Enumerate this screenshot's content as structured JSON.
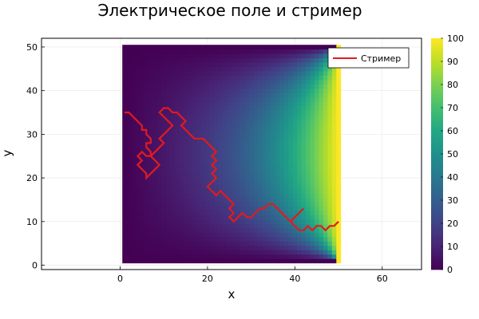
{
  "chart_data": {
    "type": "heatmap",
    "title": "Электрическое поле и стример",
    "xlabel": "x",
    "ylabel": "y",
    "xlim": [
      -18,
      69
    ],
    "ylim": [
      -1,
      52
    ],
    "xticks": [
      0,
      20,
      40,
      60
    ],
    "yticks": [
      0,
      10,
      20,
      30,
      40,
      50
    ],
    "grid": true,
    "heatmap": {
      "x_range": [
        0.5,
        50.5
      ],
      "y_range": [
        0.5,
        50.5
      ],
      "nx": 50,
      "ny": 50,
      "clim": [
        0,
        100
      ],
      "colormap": "viridis",
      "boundary_values": {
        "left": 0,
        "right": 100,
        "top": 0,
        "bottom": 0
      }
    },
    "colorbar": {
      "ticks": [
        0,
        10,
        20,
        30,
        40,
        50,
        60,
        70,
        80,
        90,
        100
      ],
      "range": [
        0,
        100
      ]
    },
    "series": [
      {
        "name": "Стример",
        "type": "line",
        "color": "#e31a1c",
        "points": [
          [
            1,
            35
          ],
          [
            2,
            35
          ],
          [
            3,
            34
          ],
          [
            4,
            33
          ],
          [
            5,
            32
          ],
          [
            5,
            31
          ],
          [
            6,
            31
          ],
          [
            6,
            30
          ],
          [
            7,
            29
          ],
          [
            7,
            28
          ],
          [
            6,
            28
          ],
          [
            6,
            27
          ],
          [
            7,
            26
          ],
          [
            7,
            25
          ],
          [
            6,
            25
          ],
          [
            5,
            26
          ],
          [
            4,
            25
          ],
          [
            5,
            24
          ],
          [
            4,
            23
          ],
          [
            5,
            22
          ],
          [
            6,
            21
          ],
          [
            6,
            20
          ],
          [
            7,
            21
          ],
          [
            8,
            22
          ],
          [
            9,
            23
          ],
          [
            8,
            24
          ],
          [
            7,
            25
          ],
          [
            8,
            26
          ],
          [
            9,
            27
          ],
          [
            10,
            28
          ],
          [
            9,
            29
          ],
          [
            10,
            30
          ],
          [
            11,
            31
          ],
          [
            12,
            32
          ],
          [
            11,
            33
          ],
          [
            10,
            34
          ],
          [
            9,
            35
          ],
          [
            10,
            36
          ],
          [
            11,
            36
          ],
          [
            12,
            35
          ],
          [
            13,
            35
          ],
          [
            14,
            34
          ],
          [
            15,
            33
          ],
          [
            14,
            32
          ],
          [
            15,
            31
          ],
          [
            16,
            30
          ],
          [
            17,
            29
          ],
          [
            18,
            29
          ],
          [
            19,
            29
          ],
          [
            20,
            28
          ],
          [
            21,
            27
          ],
          [
            22,
            26
          ],
          [
            21,
            25
          ],
          [
            22,
            24
          ],
          [
            21,
            23
          ],
          [
            22,
            22
          ],
          [
            21,
            21
          ],
          [
            22,
            20
          ],
          [
            21,
            19
          ],
          [
            20,
            18
          ],
          [
            21,
            17
          ],
          [
            22,
            16
          ],
          [
            23,
            17
          ],
          [
            24,
            16
          ],
          [
            25,
            15
          ],
          [
            26,
            14
          ],
          [
            25,
            13
          ],
          [
            26,
            12
          ],
          [
            25,
            11
          ],
          [
            26,
            10
          ],
          [
            27,
            11
          ],
          [
            28,
            12
          ],
          [
            29,
            11
          ],
          [
            30,
            11
          ],
          [
            31,
            12
          ],
          [
            32,
            13
          ],
          [
            33,
            13
          ],
          [
            34,
            14
          ],
          [
            35,
            14
          ],
          [
            36,
            13
          ],
          [
            37,
            12
          ],
          [
            38,
            11
          ],
          [
            39,
            10
          ],
          [
            40,
            11
          ],
          [
            41,
            12
          ],
          [
            42,
            13
          ],
          [
            41,
            12
          ],
          [
            40,
            11
          ],
          [
            39,
            10
          ],
          [
            40,
            9
          ],
          [
            41,
            8
          ],
          [
            42,
            8
          ],
          [
            43,
            9
          ],
          [
            44,
            8
          ],
          [
            45,
            9
          ],
          [
            46,
            9
          ],
          [
            47,
            8
          ],
          [
            48,
            9
          ],
          [
            49,
            9
          ],
          [
            50,
            10
          ]
        ]
      }
    ],
    "legend": {
      "position": "top-right"
    }
  }
}
